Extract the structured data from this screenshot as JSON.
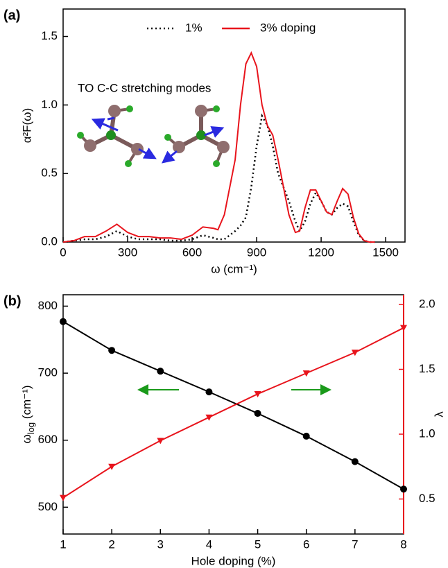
{
  "chart_data": [
    {
      "type": "line",
      "panel_label": "(a)",
      "annotation": "TO C-C stretching modes",
      "x_label": "ω (cm⁻¹)",
      "y_label": "α²F(ω)",
      "x": [
        0,
        50,
        100,
        150,
        200,
        250,
        300,
        350,
        400,
        450,
        500,
        550,
        600,
        650,
        700,
        720,
        750,
        800,
        825,
        850,
        875,
        900,
        925,
        950,
        975,
        1000,
        1050,
        1080,
        1100,
        1125,
        1150,
        1175,
        1200,
        1225,
        1250,
        1275,
        1300,
        1325,
        1350,
        1375,
        1400,
        1425,
        1450
      ],
      "series": [
        {
          "name": "1%",
          "color": "#000000",
          "linestyle": "dotted",
          "values": [
            0,
            0.01,
            0.02,
            0.02,
            0.04,
            0.08,
            0.04,
            0.02,
            0.02,
            0.02,
            0.01,
            0.01,
            0.02,
            0.05,
            0.03,
            0.02,
            0.02,
            0.08,
            0.12,
            0.18,
            0.4,
            0.7,
            0.92,
            0.85,
            0.7,
            0.5,
            0.3,
            0.15,
            0.08,
            0.15,
            0.28,
            0.36,
            0.3,
            0.22,
            0.2,
            0.25,
            0.28,
            0.26,
            0.15,
            0.05,
            0.01,
            0,
            0
          ]
        },
        {
          "name": "3% doping",
          "color": "#e8141c",
          "linestyle": "solid",
          "values": [
            0,
            0.01,
            0.04,
            0.04,
            0.08,
            0.13,
            0.07,
            0.04,
            0.04,
            0.03,
            0.03,
            0.02,
            0.05,
            0.11,
            0.1,
            0.09,
            0.2,
            0.6,
            1.0,
            1.3,
            1.38,
            1.28,
            1.0,
            0.85,
            0.78,
            0.6,
            0.2,
            0.07,
            0.08,
            0.25,
            0.38,
            0.38,
            0.3,
            0.22,
            0.2,
            0.3,
            0.39,
            0.35,
            0.18,
            0.06,
            0.01,
            0,
            0
          ]
        }
      ],
      "xlim": [
        0,
        1590
      ],
      "xticks": [
        0,
        300,
        600,
        900,
        1200,
        1500
      ],
      "ylim": [
        0,
        1.7
      ],
      "yticks": [
        {
          "value": 0,
          "label": "0.0"
        },
        0.5,
        {
          "value": 1,
          "label": "1.0"
        },
        1.5
      ],
      "legend": "top"
    },
    {
      "type": "line",
      "panel_label": "(b)",
      "x_label": "Hole doping (%)",
      "y_label": [
        "ω",
        "log",
        " (cm⁻¹)"
      ],
      "y2_label": "λ",
      "x": [
        1,
        2,
        3,
        4,
        5,
        6,
        7,
        8
      ],
      "series": [
        {
          "color": "#000000",
          "linestyle": "solid",
          "marker": "circle",
          "values": [
            777,
            734,
            703,
            672,
            640,
            606,
            568,
            527
          ]
        },
        {
          "color": "#e8141c",
          "linestyle": "solid",
          "marker": "triangle-down",
          "axis": "y2",
          "values": [
            0.51,
            0.75,
            0.95,
            1.13,
            1.31,
            1.47,
            1.63,
            1.82
          ]
        }
      ],
      "xlim": [
        1,
        8
      ],
      "xticks": [
        1,
        2,
        3,
        4,
        5,
        6,
        7,
        8
      ],
      "ylim": [
        460,
        817
      ],
      "yticks": [
        500,
        600,
        700,
        800
      ],
      "y2lim": [
        0.23,
        2.075
      ],
      "y2ticks": [
        0.5,
        {
          "value": 1,
          "label": "1.0"
        },
        1.5,
        {
          "value": 2,
          "label": "2.0"
        }
      ],
      "y2color": "#e8141c"
    }
  ]
}
